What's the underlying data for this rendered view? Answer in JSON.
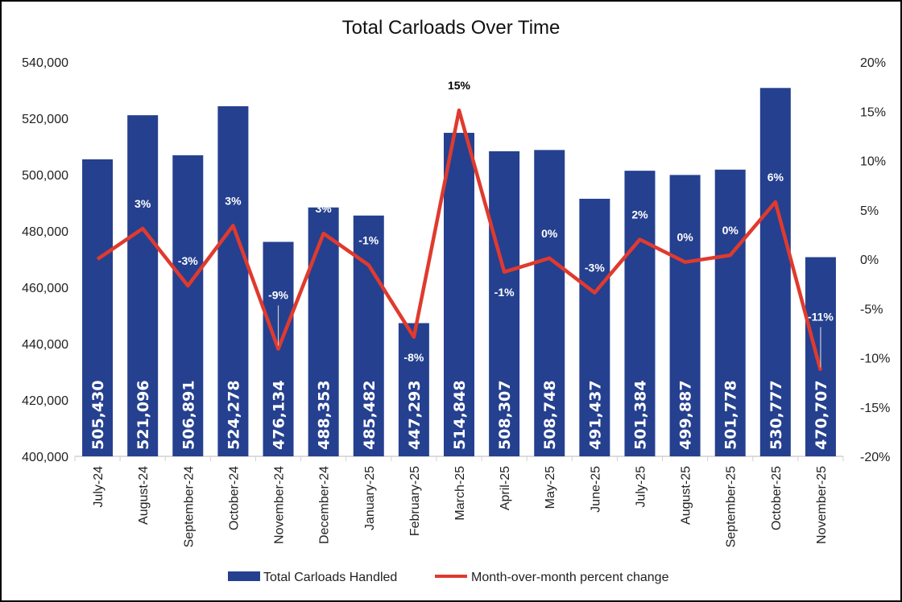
{
  "chart_data": {
    "type": "bar+line",
    "title": "Total Carloads Over Time",
    "categories": [
      "July-24",
      "August-24",
      "September-24",
      "October-24",
      "November-24",
      "December-24",
      "January-25",
      "February-25",
      "March-25",
      "April-25",
      "May-25",
      "June-25",
      "July-25",
      "August-25",
      "September-25",
      "October-25",
      "November-25"
    ],
    "series": [
      {
        "name": "Total Carloads Handled",
        "type": "bar",
        "axis": "left",
        "color": "#25408F",
        "values": [
          505430,
          521096,
          506891,
          524278,
          476134,
          488353,
          485482,
          447293,
          514848,
          508307,
          508748,
          491437,
          501384,
          499887,
          501778,
          530777,
          470707
        ],
        "data_labels": [
          "505,430",
          "521,096",
          "506,891",
          "524,278",
          "476,134",
          "488,353",
          "485,482",
          "447,293",
          "514,848",
          "508,307",
          "508,748",
          "491,437",
          "501,384",
          "499,887",
          "501,778",
          "530,777",
          "470,707"
        ]
      },
      {
        "name": "Month-over-month percent change",
        "type": "line",
        "axis": "right",
        "color": "#E03A2E",
        "values": [
          0,
          3.1,
          -2.7,
          3.4,
          -9.1,
          2.6,
          -0.6,
          -7.9,
          15.1,
          -1.3,
          0.1,
          -3.4,
          2.0,
          -0.3,
          0.4,
          5.8,
          -11.3
        ],
        "data_labels": [
          "",
          "3%",
          "-3%",
          "3%",
          "-9%",
          "3%",
          "-1%",
          "-8%",
          "15%",
          "-1%",
          "0%",
          "-3%",
          "2%",
          "0%",
          "0%",
          "6%",
          "-11%"
        ]
      }
    ],
    "left_axis": {
      "ylim": [
        400000,
        540000
      ],
      "ticks": [
        "400,000",
        "420,000",
        "440,000",
        "460,000",
        "480,000",
        "500,000",
        "520,000",
        "540,000"
      ]
    },
    "right_axis": {
      "ylim": [
        -20,
        20
      ],
      "ticks": [
        "-20%",
        "-15%",
        "-10%",
        "-5%",
        "0%",
        "5%",
        "10%",
        "15%",
        "20%"
      ]
    },
    "grid": false,
    "legend_position": "bottom"
  }
}
